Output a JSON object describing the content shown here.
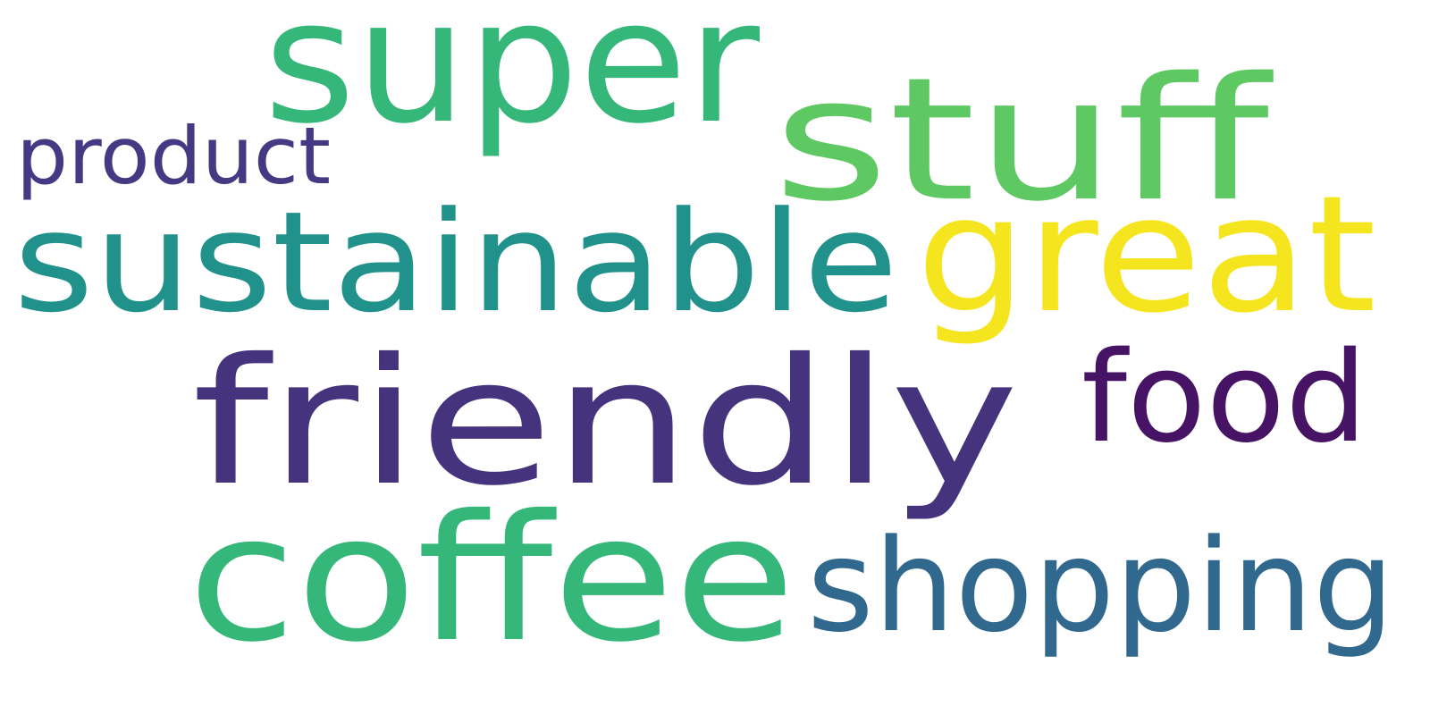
{
  "chart_data": {
    "type": "wordcloud",
    "words": [
      {
        "text": "super",
        "color": "#35b779"
      },
      {
        "text": "stuff",
        "color": "#5ec962"
      },
      {
        "text": "product",
        "color": "#443983"
      },
      {
        "text": "sustainable",
        "color": "#21918c"
      },
      {
        "text": "great",
        "color": "#f5e51f"
      },
      {
        "text": "friendly",
        "color": "#46337e"
      },
      {
        "text": "food",
        "color": "#471365"
      },
      {
        "text": "coffee",
        "color": "#35b779"
      },
      {
        "text": "shopping",
        "color": "#31688e"
      }
    ]
  }
}
